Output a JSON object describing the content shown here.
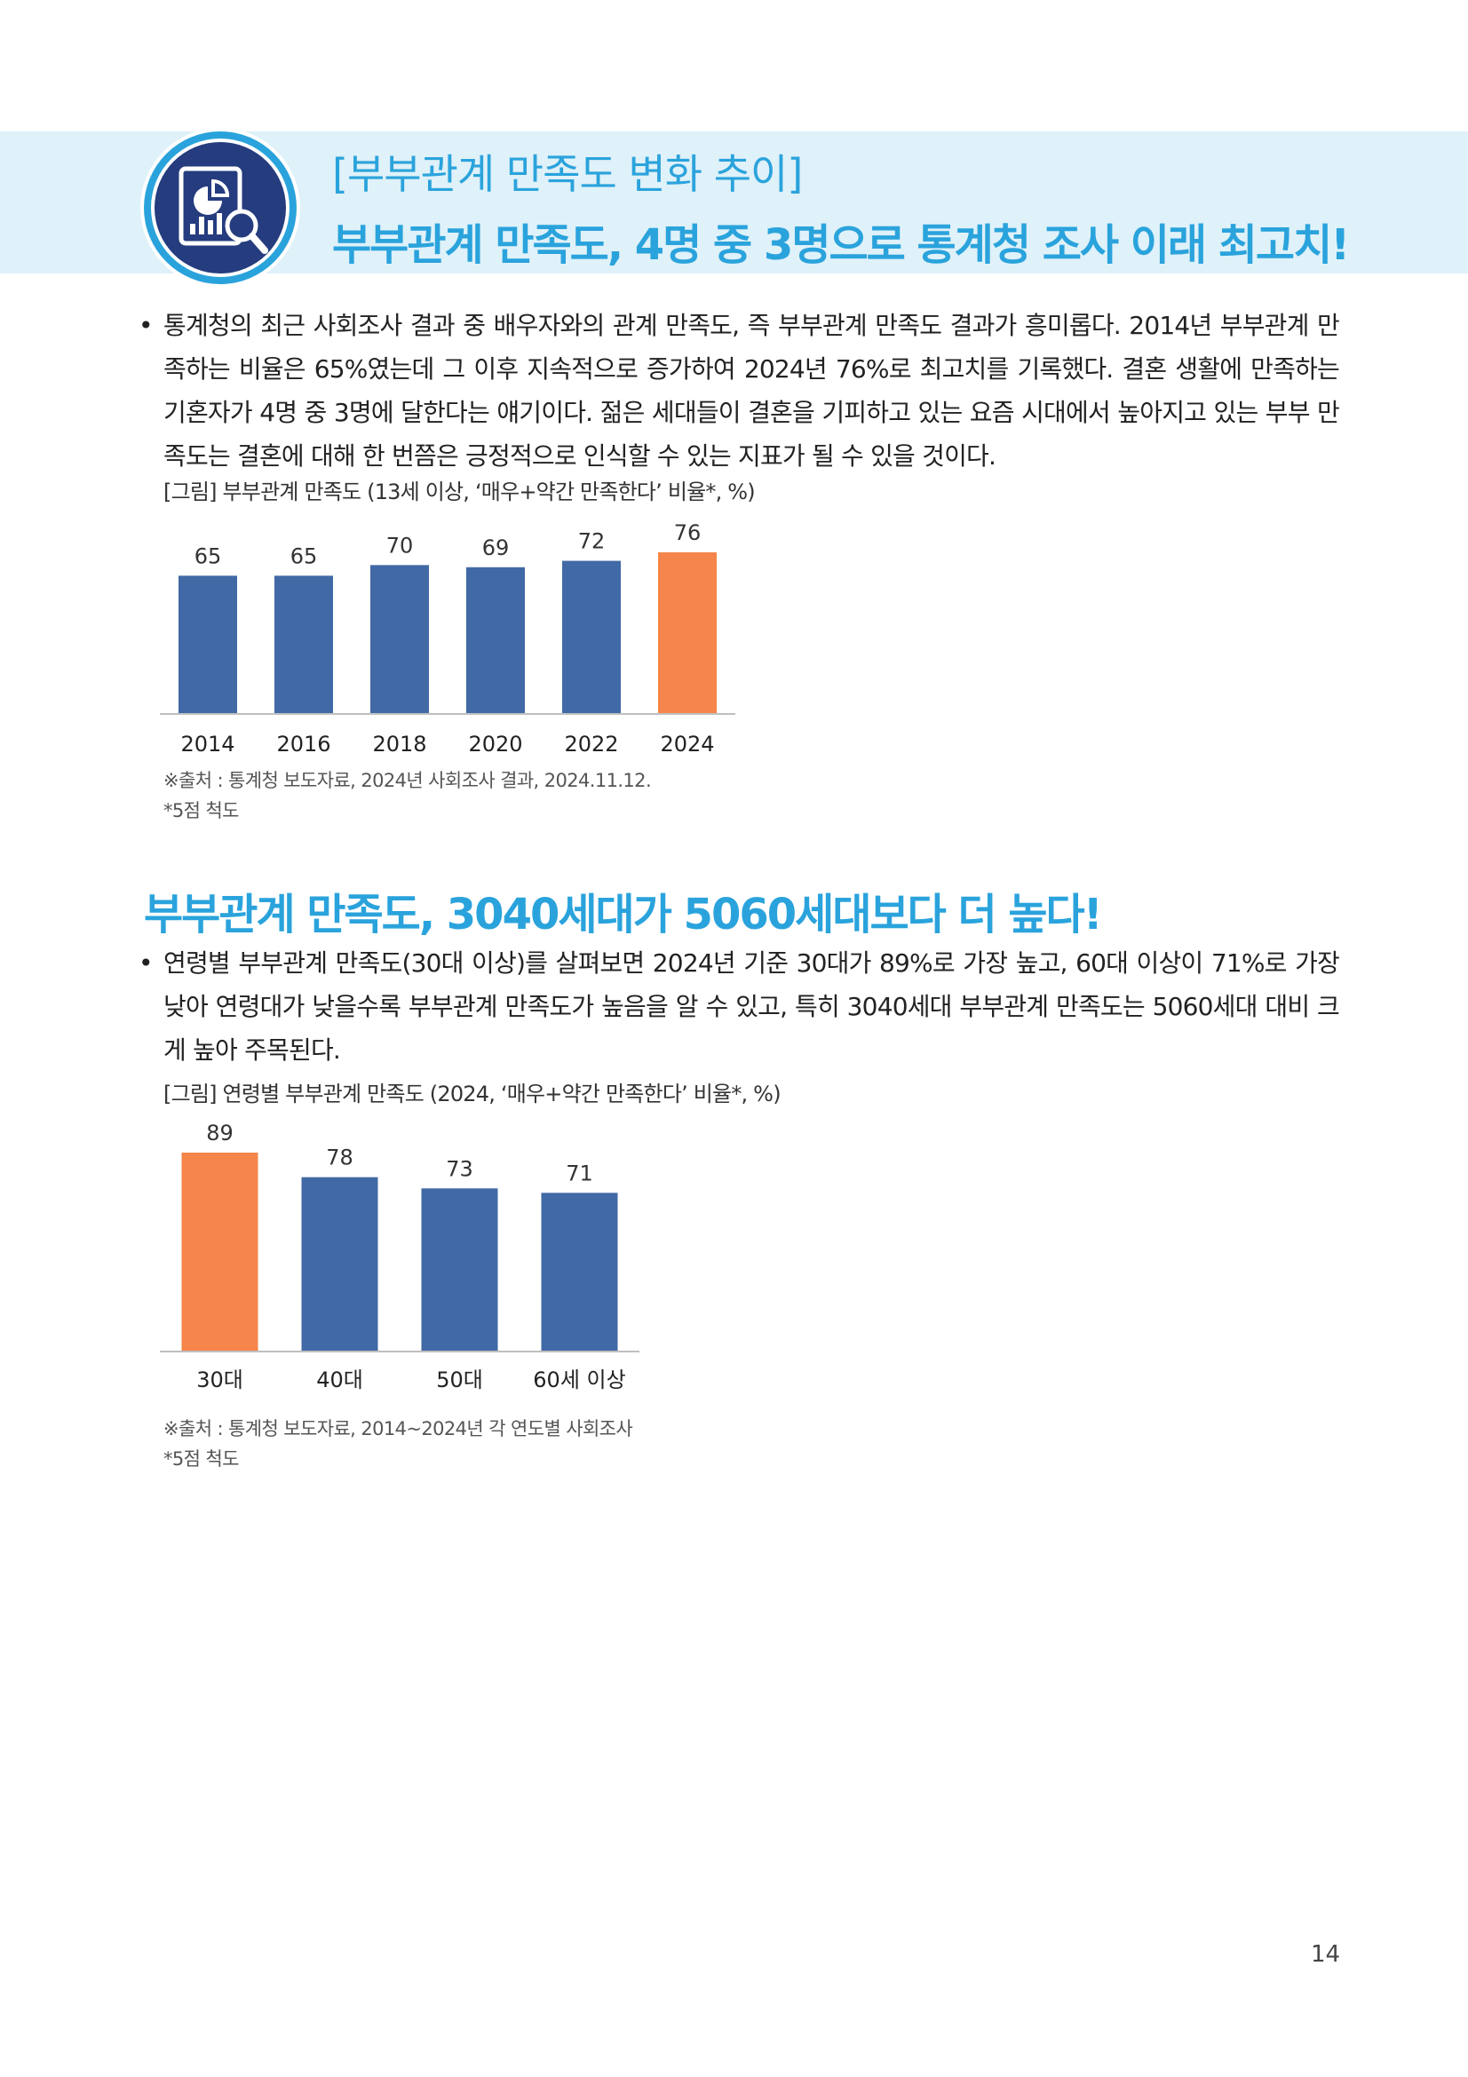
{
  "header": {
    "subtitle": "[부부관계 만족도 변화 추이]",
    "title": "부부관계 만족도, 4명 중 3명으로 통계청 조사 이래 최고치!",
    "icon": "chart-magnifier-icon"
  },
  "section1": {
    "bullet": "•",
    "paragraph": "통계청의 최근 사회조사 결과 중 배우자와의 관계 만족도, 즉 부부관계 만족도 결과가 흥미롭다. 2014년 부부관계 만족하는 비율은 65%였는데 그 이후 지속적으로 증가하여 2024년 76%로 최고치를 기록했다. 결혼 생활에 만족하는 기혼자가 4명 중 3명에 달한다는 얘기이다. 젊은 세대들이 결혼을 기피하고 있는 요즘 시대에서 높아지고 있는 부부 만족도는 결혼에 대해 한 번쯤은 긍정적으로 인식할 수 있는 지표가 될 수 있을 것이다.",
    "figure_caption": "[그림] 부부관계 만족도 (13세 이상, ‘매우+약간 만족한다’ 비율*, %)",
    "source_line1": "※출처 : 통계청 보도자료, 2024년 사회조사 결과, 2024.11.12.",
    "source_line2": "*5점 척도"
  },
  "section2": {
    "title": "부부관계 만족도, 3040세대가 5060세대보다 더 높다!",
    "bullet": "•",
    "paragraph": "연령별 부부관계 만족도(30대 이상)를 살펴보면 2024년 기준 30대가 89%로 가장 높고, 60대 이상이 71%로 가장 낮아 연령대가 낮을수록 부부관계 만족도가 높음을 알 수 있고, 특히 3040세대 부부관계 만족도는 5060세대 대비 크게 높아 주목된다.",
    "figure_caption": "[그림] 연령별 부부관계 만족도 (2024, ‘매우+약간 만족한다’ 비율*, %)",
    "source_line1": "※출처 : 통계청 보도자료, 2014~2024년 각 연도별 사회조사",
    "source_line2": "*5점 척도"
  },
  "page_number": "14",
  "colors": {
    "accent": "#2aa3dc",
    "bar_blue": "#4169a5",
    "bar_orange": "#f5854a",
    "band": "#dff1f9"
  },
  "chart_data": [
    {
      "type": "bar",
      "categories": [
        "2014",
        "2016",
        "2018",
        "2020",
        "2022",
        "2024"
      ],
      "values": [
        65,
        65,
        70,
        69,
        72,
        76
      ],
      "highlight_index": 5,
      "title": "",
      "xlabel": "",
      "ylabel": "",
      "ylim": [
        0,
        76
      ],
      "grid": false
    },
    {
      "type": "bar",
      "categories": [
        "30대",
        "40대",
        "50대",
        "60세 이상"
      ],
      "values": [
        89,
        78,
        73,
        71
      ],
      "highlight_index": 0,
      "title": "",
      "xlabel": "",
      "ylabel": "",
      "ylim": [
        0,
        89
      ],
      "grid": false
    }
  ]
}
